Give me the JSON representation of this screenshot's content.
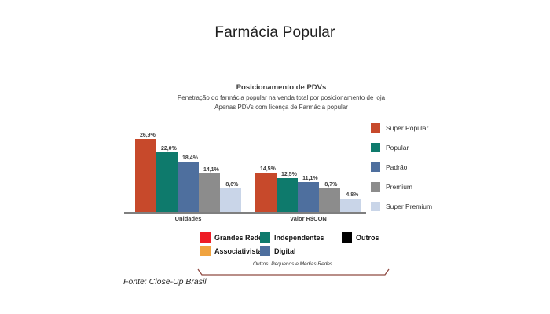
{
  "page": {
    "title": "Farmácia Popular",
    "source": "Fonte: Close-Up Brasil"
  },
  "chart_data": {
    "type": "bar",
    "title": "Posicionamento de PDVs",
    "subtitle1": "Penetração do farmácia popular na venda total por posicionamento de loja",
    "subtitle2": "Apenas PDVs com licença de Farmácia popular",
    "categories": [
      "Unidades",
      "Valor R$CON"
    ],
    "series": [
      {
        "name": "Super Popular",
        "color": "#C7492B",
        "values": [
          26.9,
          14.5
        ]
      },
      {
        "name": "Popular",
        "color": "#0E7A6C",
        "values": [
          22.0,
          12.5
        ]
      },
      {
        "name": "Padrão",
        "color": "#4E6F9E",
        "values": [
          18.4,
          11.1
        ]
      },
      {
        "name": "Premium",
        "color": "#8C8C8C",
        "values": [
          14.1,
          8.7
        ]
      },
      {
        "name": "Super Premium",
        "color": "#C9D5E8",
        "values": [
          8.6,
          4.8
        ]
      }
    ],
    "value_suffix": "%",
    "decimal_separator": ",",
    "legend_position": "right",
    "grid": false,
    "xlabel": "",
    "ylabel": "",
    "ylim": [
      0,
      30
    ]
  },
  "bottom_legend": {
    "items": [
      {
        "label": "Grandes Redes",
        "color": "#EE1C25"
      },
      {
        "label": "Independentes",
        "color": "#0E7A6C"
      },
      {
        "label": "Outros",
        "color": "#000000"
      },
      {
        "label": "Associativistas",
        "color": "#F0A33F"
      },
      {
        "label": "Digital",
        "color": "#4E6F9E"
      }
    ],
    "note": "Outros: Pequenos e Médias Redes."
  },
  "style": {
    "bracket_color": "#8F4A42",
    "baseline_color": "#7F7F7F"
  }
}
